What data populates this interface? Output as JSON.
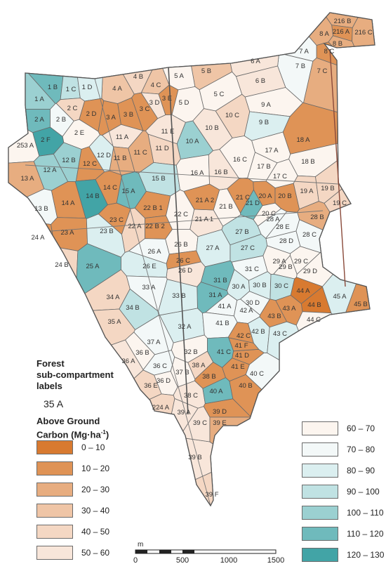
{
  "legend": {
    "title_lines": [
      "Forest",
      "sub-compartment",
      "labels"
    ],
    "sample_label": "35 A",
    "carbon_title": "Above Ground",
    "carbon_unit_prefix": "Carbon (Mg·ha",
    "carbon_unit_sup": "-1",
    "carbon_unit_suffix": ")"
  },
  "classes": [
    {
      "label": "0 – 10",
      "color": "#d87a30"
    },
    {
      "label": "10 – 20",
      "color": "#df9356"
    },
    {
      "label": "20 – 30",
      "color": "#e7ad80"
    },
    {
      "label": "30 – 40",
      "color": "#efc5a6"
    },
    {
      "label": "40 – 50",
      "color": "#f4d7c3"
    },
    {
      "label": "50 – 60",
      "color": "#f8e6da"
    },
    {
      "label": "60 – 70",
      "color": "#fcf5ef"
    },
    {
      "label": "70 – 80",
      "color": "#f3f8f8"
    },
    {
      "label": "80 – 90",
      "color": "#dbeff0"
    },
    {
      "label": "90 – 100",
      "color": "#c0e2e3"
    },
    {
      "label": "100 – 110",
      "color": "#9bd0d1"
    },
    {
      "label": "110 – 120",
      "color": "#6fbabc"
    },
    {
      "label": "120 – 130",
      "color": "#42a4a6"
    }
  ],
  "scalebar": {
    "unit": "m",
    "ticks": [
      "0",
      "500",
      "1000",
      "1500"
    ]
  },
  "compartments": [
    {
      "label": "216 B",
      "cls": 2
    },
    {
      "label": "216 A",
      "cls": 1
    },
    {
      "label": "216 C",
      "cls": 2
    },
    {
      "label": "8 A",
      "cls": 2
    },
    {
      "label": "8 B",
      "cls": 2
    },
    {
      "label": "8 C",
      "cls": 1
    },
    {
      "label": "7 A",
      "cls": 7
    },
    {
      "label": "7 B",
      "cls": 7
    },
    {
      "label": "7 C",
      "cls": 2
    },
    {
      "label": "6 A",
      "cls": 5
    },
    {
      "label": "6 B",
      "cls": 5
    },
    {
      "label": "5 A",
      "cls": 6
    },
    {
      "label": "5 B",
      "cls": 3
    },
    {
      "label": "5 C",
      "cls": 6
    },
    {
      "label": "5 D",
      "cls": 6
    },
    {
      "label": "4 A",
      "cls": 3
    },
    {
      "label": "4 B",
      "cls": 4
    },
    {
      "label": "4 C",
      "cls": 3
    },
    {
      "label": "1 A",
      "cls": 10
    },
    {
      "label": "1 B",
      "cls": 11
    },
    {
      "label": "1 C",
      "cls": 9
    },
    {
      "label": "1 D",
      "cls": 8
    },
    {
      "label": "2 A",
      "cls": 11
    },
    {
      "label": "2 B",
      "cls": 7
    },
    {
      "label": "2 C",
      "cls": 4
    },
    {
      "label": "2 D",
      "cls": 1
    },
    {
      "label": "2 E",
      "cls": 6
    },
    {
      "label": "2 F",
      "cls": 12
    },
    {
      "label": "253 A",
      "cls": 6
    },
    {
      "label": "3 A",
      "cls": 1
    },
    {
      "label": "3 B",
      "cls": 1
    },
    {
      "label": "3 C",
      "cls": 1
    },
    {
      "label": "3 D",
      "cls": 5
    },
    {
      "label": "3 E",
      "cls": 1
    },
    {
      "label": "9 A",
      "cls": 6
    },
    {
      "label": "9 B",
      "cls": 8
    },
    {
      "label": "10 A",
      "cls": 10
    },
    {
      "label": "10 B",
      "cls": 5
    },
    {
      "label": "10 C",
      "cls": 4
    },
    {
      "label": "11 A",
      "cls": 5
    },
    {
      "label": "11 B",
      "cls": 2
    },
    {
      "label": "11 C",
      "cls": 2
    },
    {
      "label": "11 D",
      "cls": 4
    },
    {
      "label": "11 E",
      "cls": 5
    },
    {
      "label": "12 A",
      "cls": 10
    },
    {
      "label": "12 B",
      "cls": 10
    },
    {
      "label": "12 C",
      "cls": 1
    },
    {
      "label": "12 D",
      "cls": 8
    },
    {
      "label": "13 A",
      "cls": 2
    },
    {
      "label": "13 B",
      "cls": 7
    },
    {
      "label": "14 A",
      "cls": 1
    },
    {
      "label": "14 B",
      "cls": 12
    },
    {
      "label": "14 C",
      "cls": 1
    },
    {
      "label": "15 A",
      "cls": 11
    },
    {
      "label": "15 B",
      "cls": 9
    },
    {
      "label": "16 A",
      "cls": 6
    },
    {
      "label": "16 B",
      "cls": 5
    },
    {
      "label": "16 C",
      "cls": 6
    },
    {
      "label": "17 A",
      "cls": 6
    },
    {
      "label": "17 B",
      "cls": 6
    },
    {
      "label": "17 C",
      "cls": 6
    },
    {
      "label": "18 A",
      "cls": 1
    },
    {
      "label": "18 B",
      "cls": 6
    },
    {
      "label": "19 A",
      "cls": 4
    },
    {
      "label": "19 B",
      "cls": 4
    },
    {
      "label": "19 C",
      "cls": 4
    },
    {
      "label": "20 A",
      "cls": 1
    },
    {
      "label": "20 B",
      "cls": 1
    },
    {
      "label": "20 C",
      "cls": 6
    },
    {
      "label": "21 A 1",
      "cls": 5
    },
    {
      "label": "21 A 2",
      "cls": 1
    },
    {
      "label": "21 B",
      "cls": 6
    },
    {
      "label": "21 C",
      "cls": 1
    },
    {
      "label": "21 D",
      "cls": 11
    },
    {
      "label": "22 A",
      "cls": 4
    },
    {
      "label": "22 B 1",
      "cls": 1
    },
    {
      "label": "22 B 2",
      "cls": 1
    },
    {
      "label": "22 C",
      "cls": 6
    },
    {
      "label": "23 A",
      "cls": 1
    },
    {
      "label": "23 B",
      "cls": 8
    },
    {
      "label": "23 C",
      "cls": 1
    },
    {
      "label": "24 A",
      "cls": 1
    },
    {
      "label": "24 B",
      "cls": 4
    },
    {
      "label": "25 A",
      "cls": 11
    },
    {
      "label": "26 A",
      "cls": 7
    },
    {
      "label": "26 B",
      "cls": 6
    },
    {
      "label": "26 C",
      "cls": 1
    },
    {
      "label": "26 D",
      "cls": 5
    },
    {
      "label": "26 E",
      "cls": 8
    },
    {
      "label": "27 A",
      "cls": 8
    },
    {
      "label": "27 B",
      "cls": 9
    },
    {
      "label": "27 C",
      "cls": 9
    },
    {
      "label": "28 A",
      "cls": 7
    },
    {
      "label": "28 B",
      "cls": 2
    },
    {
      "label": "28 C",
      "cls": 7
    },
    {
      "label": "28 D",
      "cls": 7
    },
    {
      "label": "28 E",
      "cls": 7
    },
    {
      "label": "29 A",
      "cls": 6
    },
    {
      "label": "29 B",
      "cls": 6
    },
    {
      "label": "29 C",
      "cls": 6
    },
    {
      "label": "29 D",
      "cls": 6
    },
    {
      "label": "30 A",
      "cls": 8
    },
    {
      "label": "30 B",
      "cls": 8
    },
    {
      "label": "30 C",
      "cls": 9
    },
    {
      "label": "30 D",
      "cls": 7
    },
    {
      "label": "31 A",
      "cls": 11
    },
    {
      "label": "31 B",
      "cls": 11
    },
    {
      "label": "31 C",
      "cls": 7
    },
    {
      "label": "32 A",
      "cls": 8
    },
    {
      "label": "32 B",
      "cls": 6
    },
    {
      "label": "33 A",
      "cls": 7
    },
    {
      "label": "33 B",
      "cls": 8
    },
    {
      "label": "34 A",
      "cls": 4
    },
    {
      "label": "34 B",
      "cls": 9
    },
    {
      "label": "35 A",
      "cls": 4
    },
    {
      "label": "36 A",
      "cls": 5
    },
    {
      "label": "36 B",
      "cls": 6
    },
    {
      "label": "36 C",
      "cls": 7
    },
    {
      "label": "36 D",
      "cls": 6
    },
    {
      "label": "36 E",
      "cls": 4
    },
    {
      "label": "37 A",
      "cls": 7
    },
    {
      "label": "37 B",
      "cls": 6
    },
    {
      "label": "38 A",
      "cls": 4
    },
    {
      "label": "38 B",
      "cls": 1
    },
    {
      "label": "38 C",
      "cls": 5
    },
    {
      "label": "39 A",
      "cls": 5
    },
    {
      "label": "39 B",
      "cls": 5
    },
    {
      "label": "39 C",
      "cls": 5
    },
    {
      "label": "39 D",
      "cls": 1
    },
    {
      "label": "39 E",
      "cls": 2
    },
    {
      "label": "39 F",
      "cls": 4
    },
    {
      "label": "40 A",
      "cls": 11
    },
    {
      "label": "40 B",
      "cls": 1
    },
    {
      "label": "40 C",
      "cls": 7
    },
    {
      "label": "41 A",
      "cls": 7
    },
    {
      "label": "41 B",
      "cls": 7
    },
    {
      "label": "41 C",
      "cls": 11
    },
    {
      "label": "41 D",
      "cls": 1
    },
    {
      "label": "41 E",
      "cls": 1
    },
    {
      "label": "41 F",
      "cls": 1
    },
    {
      "label": "42 A",
      "cls": 7
    },
    {
      "label": "42 B",
      "cls": 8
    },
    {
      "label": "42 C",
      "cls": 1
    },
    {
      "label": "43 A",
      "cls": 1
    },
    {
      "label": "43 B",
      "cls": 1
    },
    {
      "label": "43 C",
      "cls": 8
    },
    {
      "label": "44 A",
      "cls": 0
    },
    {
      "label": "44 B",
      "cls": 0
    },
    {
      "label": "44 C",
      "cls": 6
    },
    {
      "label": "45 A",
      "cls": 8
    },
    {
      "label": "45 B",
      "cls": 1
    },
    {
      "label": "224 A",
      "cls": 4
    }
  ]
}
